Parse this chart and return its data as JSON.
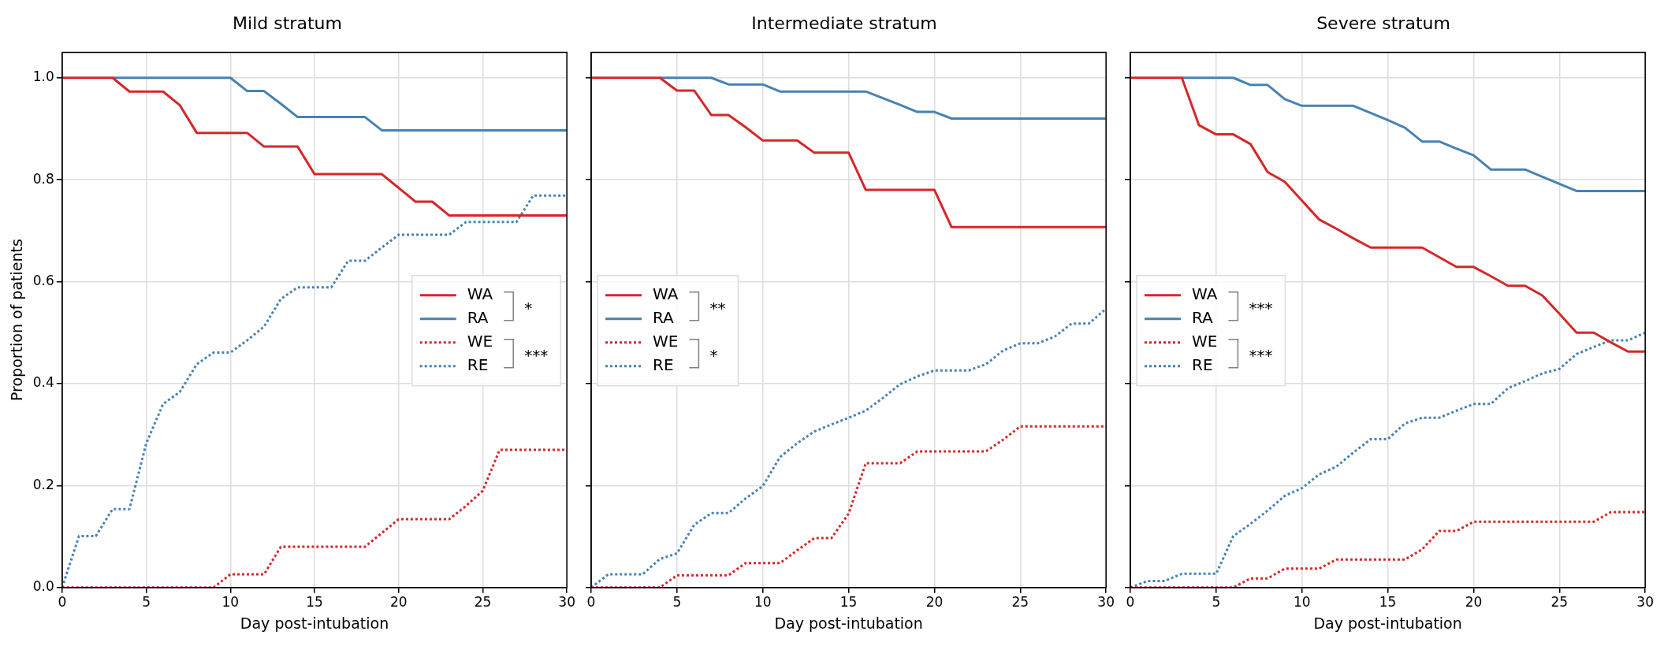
{
  "chart_data": [
    {
      "type": "line",
      "title": "Mild stratum",
      "xlabel": "Day post-intubation",
      "ylabel": "Proportion of patients",
      "x": [
        0,
        1,
        2,
        3,
        4,
        5,
        6,
        7,
        8,
        9,
        10,
        11,
        12,
        13,
        14,
        15,
        16,
        17,
        18,
        19,
        20,
        21,
        22,
        23,
        24,
        25,
        26,
        27,
        28,
        29,
        30
      ],
      "xlim": [
        0,
        30
      ],
      "xticks": [
        0,
        5,
        10,
        15,
        20,
        25,
        30
      ],
      "ylim": [
        0,
        1.05
      ],
      "yticks": [
        {
          "value": 0,
          "label": "0.0"
        },
        {
          "value": 0.2,
          "label": "0.2"
        },
        {
          "value": 0.4,
          "label": "0.4"
        },
        {
          "value": 0.6,
          "label": "0.6"
        },
        {
          "value": 0.8,
          "label": "0.8"
        },
        {
          "value": 1,
          "label": "1.0"
        }
      ],
      "grid": true,
      "legend": "center right",
      "annotations": [
        "*",
        "***"
      ],
      "series": [
        {
          "name": "WA",
          "color": "#d62728",
          "line_style": "solid",
          "values": [
            1,
            1,
            1,
            1,
            0.973,
            0.973,
            0.973,
            0.946,
            0.892,
            0.892,
            0.892,
            0.892,
            0.865,
            0.865,
            0.865,
            0.811,
            0.811,
            0.811,
            0.811,
            0.811,
            0.784,
            0.757,
            0.757,
            0.73,
            0.73,
            0.73,
            0.73,
            0.73,
            0.73,
            0.73,
            0.73
          ]
        },
        {
          "name": "RA",
          "color": "#4682b4",
          "line_style": "solid",
          "values": [
            null,
            null,
            null,
            1,
            1,
            1,
            1,
            1,
            1,
            1,
            1,
            0.974,
            0.974,
            0.949,
            0.923,
            0.923,
            0.923,
            0.923,
            0.923,
            0.897,
            0.897,
            0.897,
            0.897,
            0.897,
            0.897,
            0.897,
            0.897,
            0.897,
            0.897,
            0.897,
            0.897
          ]
        },
        {
          "name": "WE",
          "color": "#d62728",
          "line_style": "dotted",
          "values": [
            0,
            0,
            0,
            0,
            0,
            0,
            0,
            0,
            0,
            0,
            0.026,
            0.026,
            0.026,
            0.08,
            0.08,
            0.08,
            0.08,
            0.08,
            0.08,
            0.107,
            0.134,
            0.134,
            0.134,
            0.134,
            0.16,
            0.19,
            0.27,
            0.27,
            0.27,
            0.27,
            0.27
          ]
        },
        {
          "name": "RE",
          "color": "#4682b4",
          "line_style": "dotted",
          "values": [
            0,
            0.101,
            0.101,
            0.154,
            0.154,
            0.283,
            0.36,
            0.384,
            0.438,
            0.461,
            0.461,
            0.485,
            0.512,
            0.566,
            0.589,
            0.589,
            0.589,
            0.641,
            0.641,
            0.667,
            0.692,
            0.692,
            0.692,
            0.692,
            0.717,
            0.717,
            0.717,
            0.717,
            0.769,
            0.769,
            0.769
          ]
        }
      ]
    },
    {
      "type": "line",
      "title": "Intermediate stratum",
      "xlabel": "Day post-intubation",
      "x": [
        0,
        1,
        2,
        3,
        4,
        5,
        6,
        7,
        8,
        9,
        10,
        11,
        12,
        13,
        14,
        15,
        16,
        17,
        18,
        19,
        20,
        21,
        22,
        23,
        24,
        25,
        26,
        27,
        28,
        29,
        30
      ],
      "xlim": [
        0,
        30
      ],
      "xticks": [
        0,
        5,
        10,
        15,
        20,
        25,
        30
      ],
      "ylim": [
        0,
        1.05
      ],
      "yticks": [
        {
          "value": 0,
          "label": null
        },
        {
          "value": 0.2,
          "label": null
        },
        {
          "value": 0.4,
          "label": null
        },
        {
          "value": 0.6,
          "label": null
        },
        {
          "value": 0.8,
          "label": null
        },
        {
          "value": 1,
          "label": null
        }
      ],
      "tick_labels": "x",
      "grid": true,
      "legend": "center left",
      "annotations": [
        "**",
        "*"
      ],
      "series": [
        {
          "name": "WA",
          "color": "#d62728",
          "line_style": "solid",
          "values": [
            1,
            1,
            1,
            1,
            1,
            0.975,
            0.975,
            0.927,
            0.927,
            0.903,
            0.877,
            0.877,
            0.877,
            0.853,
            0.853,
            0.853,
            0.78,
            0.78,
            0.78,
            0.78,
            0.78,
            0.707,
            0.707,
            0.707,
            0.707,
            0.707,
            0.707,
            0.707,
            0.707,
            0.707,
            0.707
          ]
        },
        {
          "name": "RA",
          "color": "#4682b4",
          "line_style": "solid",
          "values": [
            null,
            null,
            null,
            null,
            1,
            1,
            1,
            1,
            0.987,
            0.987,
            0.987,
            0.973,
            0.973,
            0.973,
            0.973,
            0.973,
            0.973,
            0.96,
            0.947,
            0.933,
            0.933,
            0.92,
            0.92,
            0.92,
            0.92,
            0.92,
            0.92,
            0.92,
            0.92,
            0.92,
            0.92
          ]
        },
        {
          "name": "WE",
          "color": "#d62728",
          "line_style": "dotted",
          "values": [
            0,
            0,
            0,
            0,
            0,
            0.024,
            0.024,
            0.024,
            0.024,
            0.048,
            0.048,
            0.048,
            0.073,
            0.097,
            0.097,
            0.145,
            0.244,
            0.244,
            0.244,
            0.267,
            0.267,
            0.267,
            0.267,
            0.267,
            0.29,
            0.316,
            0.316,
            0.316,
            0.316,
            0.316,
            0.316
          ]
        },
        {
          "name": "RE",
          "color": "#4682b4",
          "line_style": "dotted",
          "values": [
            0,
            0.026,
            0.026,
            0.026,
            0.056,
            0.067,
            0.123,
            0.146,
            0.146,
            0.175,
            0.199,
            0.256,
            0.283,
            0.306,
            0.32,
            0.333,
            0.347,
            0.372,
            0.399,
            0.414,
            0.426,
            0.426,
            0.426,
            0.438,
            0.465,
            0.479,
            0.479,
            0.492,
            0.518,
            0.518,
            0.547
          ]
        }
      ]
    },
    {
      "type": "line",
      "title": "Severe stratum",
      "xlabel": "Day post-intubation",
      "x": [
        0,
        1,
        2,
        3,
        4,
        5,
        6,
        7,
        8,
        9,
        10,
        11,
        12,
        13,
        14,
        15,
        16,
        17,
        18,
        19,
        20,
        21,
        22,
        23,
        24,
        25,
        26,
        27,
        28,
        29,
        30
      ],
      "xlim": [
        0,
        30
      ],
      "xticks": [
        0,
        5,
        10,
        15,
        20,
        25,
        30
      ],
      "ylim": [
        0,
        1.05
      ],
      "yticks": [
        {
          "value": 0,
          "label": null
        },
        {
          "value": 0.2,
          "label": null
        },
        {
          "value": 0.4,
          "label": null
        },
        {
          "value": 0.6,
          "label": null
        },
        {
          "value": 0.8,
          "label": null
        },
        {
          "value": 1,
          "label": null
        }
      ],
      "tick_labels": "x",
      "grid": true,
      "legend": "center left",
      "annotations": [
        "***",
        "***"
      ],
      "series": [
        {
          "name": "WA",
          "color": "#d62728",
          "line_style": "solid",
          "values": [
            1,
            1,
            1,
            1,
            0.907,
            0.889,
            0.889,
            0.87,
            0.815,
            0.796,
            0.759,
            0.722,
            0.704,
            0.685,
            0.667,
            0.667,
            0.667,
            0.667,
            0.648,
            0.629,
            0.629,
            0.611,
            0.592,
            0.592,
            0.573,
            0.537,
            0.5,
            0.5,
            0.481,
            0.463,
            0.463
          ]
        },
        {
          "name": "RA",
          "color": "#4682b4",
          "line_style": "solid",
          "values": [
            null,
            null,
            null,
            1,
            1,
            1,
            1,
            0.986,
            0.986,
            0.958,
            0.945,
            0.945,
            0.945,
            0.945,
            0.931,
            0.917,
            0.902,
            0.875,
            0.875,
            0.861,
            0.848,
            0.82,
            0.82,
            0.82,
            0.806,
            0.792,
            0.778,
            0.778,
            0.778,
            0.778,
            0.778
          ]
        },
        {
          "name": "WE",
          "color": "#d62728",
          "line_style": "dotted",
          "values": [
            0,
            0,
            0,
            0,
            0,
            0,
            0,
            0.018,
            0.018,
            0.037,
            0.037,
            0.037,
            0.055,
            0.055,
            0.055,
            0.055,
            0.055,
            0.075,
            0.111,
            0.111,
            0.129,
            0.129,
            0.129,
            0.129,
            0.129,
            0.129,
            0.129,
            0.129,
            0.148,
            0.148,
            0.148
          ]
        },
        {
          "name": "RE",
          "color": "#4682b4",
          "line_style": "dotted",
          "values": [
            0,
            0.013,
            0.013,
            0.027,
            0.027,
            0.027,
            0.101,
            0.125,
            0.151,
            0.18,
            0.195,
            0.222,
            0.237,
            0.265,
            0.291,
            0.291,
            0.322,
            0.333,
            0.333,
            0.347,
            0.36,
            0.36,
            0.391,
            0.405,
            0.42,
            0.429,
            0.458,
            0.472,
            0.485,
            0.485,
            0.5
          ]
        }
      ]
    }
  ]
}
